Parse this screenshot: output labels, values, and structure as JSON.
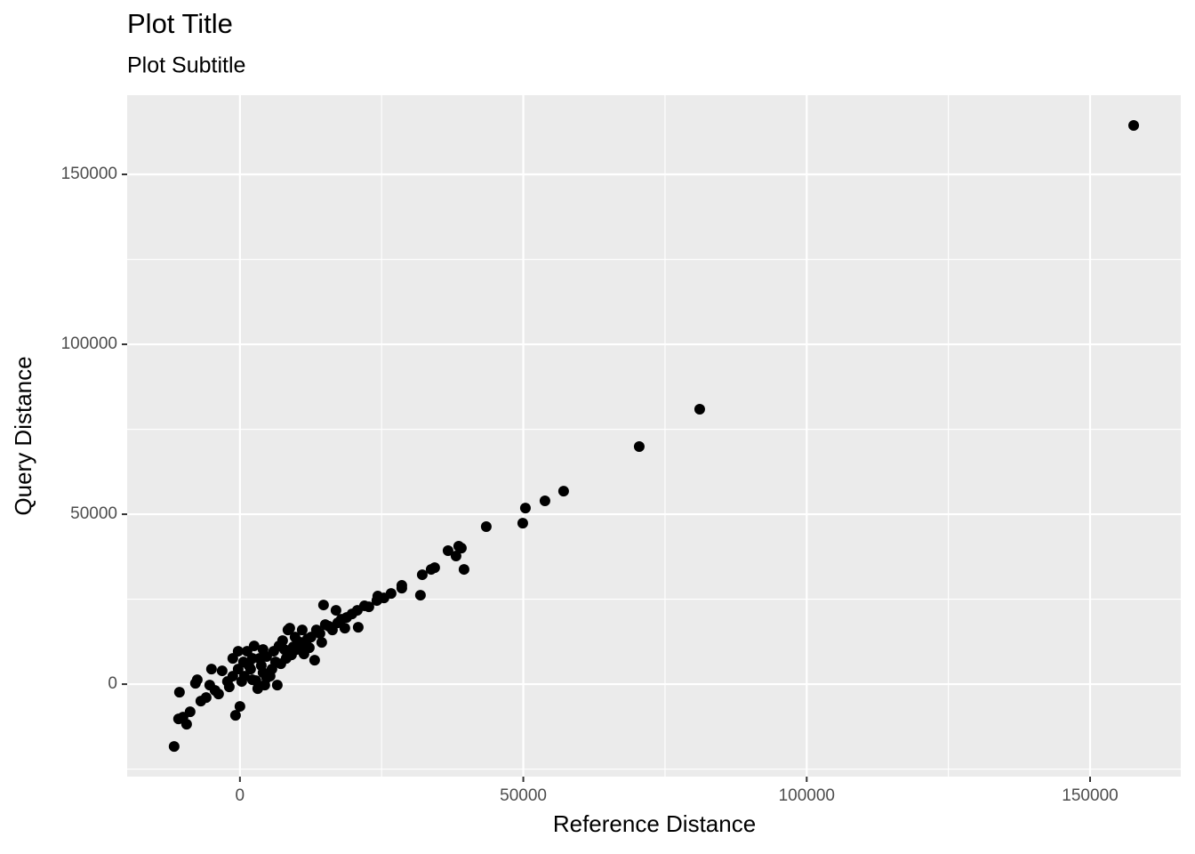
{
  "chart_data": {
    "type": "scatter",
    "title": "Plot Title",
    "subtitle": "Plot Subtitle",
    "x_label": "Reference Distance",
    "y_label": "Query Distance",
    "xlim": [
      -19900,
      166000
    ],
    "ylim": [
      -27200,
      173300
    ],
    "xticks": [
      0,
      50000,
      100000,
      150000
    ],
    "yticks": [
      0,
      50000,
      100000,
      150000
    ],
    "grid": true,
    "color": "#000000",
    "x": [
      157690,
      81120,
      70450,
      57110,
      53820,
      50370,
      49900,
      43460,
      39540,
      39070,
      38600,
      38130,
      36720,
      34360,
      33740,
      32170,
      31850,
      28560,
      28560,
      26670,
      25420,
      24320,
      24160,
      22750,
      21970,
      20870,
      20710,
      19770,
      18830,
      17890,
      16950,
      15690,
      14750,
      13490,
      13180,
      11930,
      10990,
      9410,
      8790,
      7850,
      6280,
      5330,
      4080,
      3450,
      2510,
      1570,
      630,
      0,
      -780,
      -310,
      -1260,
      -2200,
      -3140,
      -4390,
      -5020,
      -5960,
      -6900,
      -7530,
      -7850,
      -8790,
      -9410,
      -10040,
      -10670,
      -10830,
      -11610,
      780,
      1880,
      2820,
      3770,
      4710,
      5650,
      6590,
      7220,
      8160,
      9100,
      10040,
      10670,
      11610,
      12550,
      14120,
      15060,
      16320,
      17260,
      18510,
      1260,
      2200,
      3140,
      4390,
      5960,
      6900,
      7530,
      8470,
      -1260,
      -1880,
      -3770,
      -5330,
      2200,
      4080,
      4710,
      -310,
      310,
      9730,
      11300,
      12240,
      14430
    ],
    "values": [
      164400,
      80890,
      69900,
      56800,
      53930,
      51830,
      47380,
      46340,
      33770,
      40050,
      40580,
      37700,
      39270,
      34290,
      33770,
      32200,
      26180,
      29060,
      28270,
      26700,
      25390,
      25920,
      24610,
      22770,
      23040,
      16750,
      21730,
      20680,
      19630,
      19110,
      21730,
      17020,
      23300,
      15970,
      7070,
      13350,
      15970,
      10990,
      16490,
      10210,
      6540,
      2360,
      3400,
      7590,
      11260,
      5500,
      6540,
      -6540,
      -9160,
      9690,
      7590,
      790,
      3930,
      -1830,
      4450,
      -3930,
      -4970,
      1310,
      260,
      -8120,
      -11780,
      -9690,
      -2360,
      -10210,
      -18320,
      2360,
      4450,
      1050,
      5500,
      8120,
      4450,
      -260,
      6020,
      7590,
      8640,
      10210,
      12300,
      11260,
      13870,
      14920,
      17540,
      15970,
      18060,
      16490,
      9690,
      1310,
      -1310,
      -260,
      9690,
      11260,
      12830,
      15970,
      2360,
      -790,
      -2880,
      -260,
      7590,
      10210,
      1830,
      4450,
      790,
      13870,
      8900,
      10730,
      12300
    ]
  }
}
